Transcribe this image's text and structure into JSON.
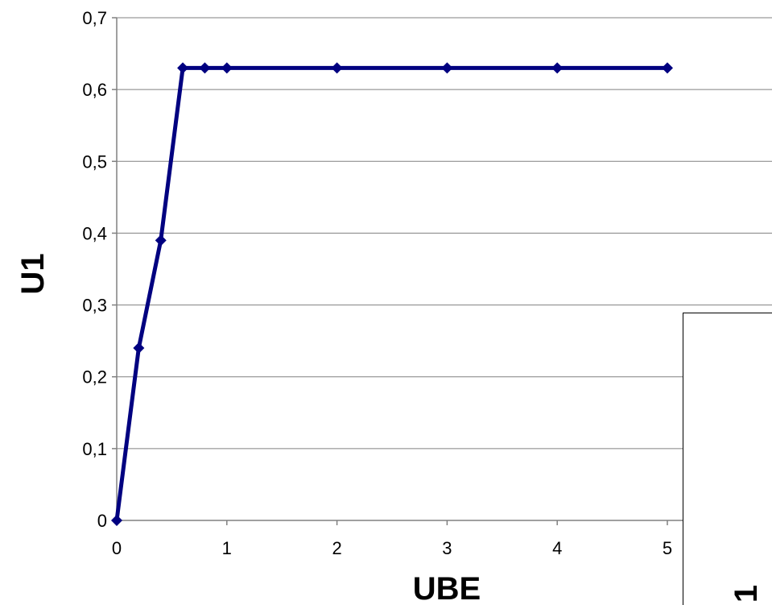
{
  "chart_data": {
    "type": "line",
    "xlabel": "UBE",
    "ylabel": "U1",
    "xlim": [
      0,
      5
    ],
    "ylim": [
      0,
      0.7
    ],
    "xticks": [
      0,
      1,
      2,
      3,
      4,
      5
    ],
    "xtick_labels": [
      "0",
      "1",
      "2",
      "3",
      "4",
      "5"
    ],
    "yticks": [
      0,
      0.1,
      0.2,
      0.3,
      0.4,
      0.5,
      0.6,
      0.7
    ],
    "ytick_labels": [
      "0",
      "0,1",
      "0,2",
      "0,3",
      "0,4",
      "0,5",
      "0,6",
      "0,7"
    ],
    "grid": "horizontal",
    "legend": "none",
    "series": [
      {
        "x": [
          0,
          0.2,
          0.4,
          0.6,
          0.8,
          1,
          2,
          3,
          4,
          5
        ],
        "y": [
          0,
          0.24,
          0.39,
          0.63,
          0.63,
          0.63,
          0.63,
          0.63,
          0.63,
          0.63
        ],
        "color": "#000080",
        "marker": "diamond"
      }
    ]
  },
  "overlay": {
    "glyph": "1"
  }
}
